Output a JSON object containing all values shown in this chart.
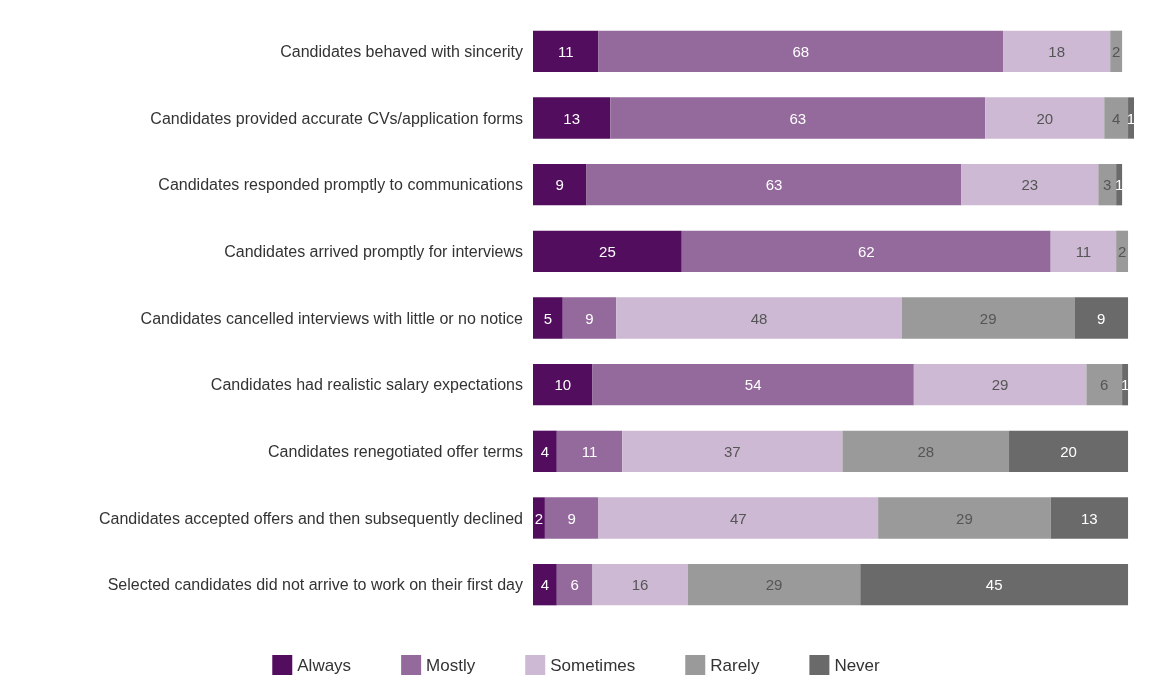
{
  "chart_data": {
    "type": "bar",
    "orientation": "horizontal",
    "stacked": true,
    "data_labels": true,
    "legend": "bottom",
    "categories": [
      "Candidates behaved with sincerity",
      "Candidates provided accurate CVs/application forms",
      "Candidates responded promptly to communications",
      "Candidates arrived promptly for interviews",
      "Candidates cancelled interviews with little or no notice",
      "Candidates had realistic salary expectations",
      "Candidates renegotiated offer terms",
      "Candidates accepted offers and then subsequently declined",
      "Selected candidates did not arrive to work on their first day"
    ],
    "series": [
      {
        "name": "Always",
        "color": "#520d5e",
        "values": [
          11,
          13,
          9,
          25,
          5,
          10,
          4,
          2,
          4
        ]
      },
      {
        "name": "Mostly",
        "color": "#946a9c",
        "values": [
          68,
          63,
          63,
          62,
          9,
          54,
          11,
          9,
          6
        ]
      },
      {
        "name": "Sometimes",
        "color": "#cdb9d3",
        "values": [
          18,
          20,
          23,
          11,
          48,
          29,
          37,
          47,
          16
        ]
      },
      {
        "name": "Rarely",
        "color": "#9a9a9a",
        "values": [
          2,
          4,
          3,
          2,
          29,
          6,
          28,
          29,
          29
        ]
      },
      {
        "name": "Never",
        "color": "#6a6a6a",
        "values": [
          null,
          1,
          1,
          null,
          9,
          1,
          20,
          13,
          45
        ]
      }
    ]
  }
}
